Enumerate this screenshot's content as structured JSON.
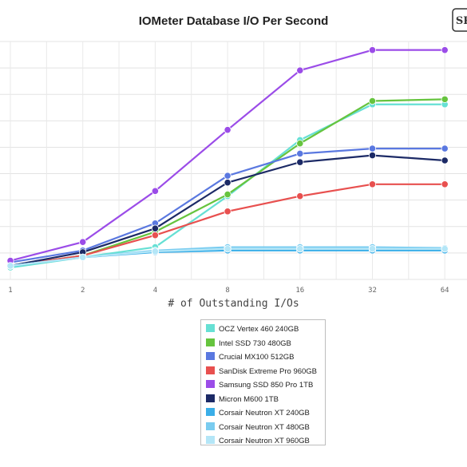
{
  "chart_data": {
    "type": "line",
    "title": "IOMeter Database I/O Per Second",
    "xlabel": "# of Outstanding I/Os",
    "ylabel": "",
    "categories": [
      "1",
      "2",
      "4",
      "8",
      "16",
      "32",
      "64"
    ],
    "yticks": 9,
    "grid": true,
    "legend_position": "bottom-center",
    "series": [
      {
        "name": "OCZ Vertex 460 240GB",
        "color": "#66e0d4",
        "values": [
          0.7,
          1.3,
          1.9,
          4.9,
          8.2,
          10.3,
          10.3
        ]
      },
      {
        "name": "Intel SSD 730 480GB",
        "color": "#66c43e",
        "values": [
          0.8,
          1.4,
          2.8,
          5.0,
          8.0,
          10.5,
          10.6
        ]
      },
      {
        "name": "Crucial MX100 512GB",
        "color": "#5a78e0",
        "values": [
          1.0,
          1.7,
          3.3,
          6.1,
          7.4,
          7.7,
          7.7
        ]
      },
      {
        "name": "SanDisk Extreme Pro 960GB",
        "color": "#e8504f",
        "values": [
          0.8,
          1.4,
          2.6,
          4.0,
          4.9,
          5.6,
          5.6
        ]
      },
      {
        "name": "Samsung SSD 850 Pro 1TB",
        "color": "#9b4ce8",
        "values": [
          1.1,
          2.2,
          5.2,
          8.8,
          12.3,
          13.5,
          13.5
        ]
      },
      {
        "name": "Micron M600 1TB",
        "color": "#1c2a66",
        "values": [
          0.8,
          1.6,
          3.0,
          5.7,
          6.9,
          7.3,
          7.0
        ]
      },
      {
        "name": "Corsair Neutron XT 240GB",
        "color": "#3aaee8",
        "values": [
          0.8,
          1.3,
          1.6,
          1.7,
          1.7,
          1.7,
          1.7
        ]
      },
      {
        "name": "Corsair Neutron XT 480GB",
        "color": "#79ccf0",
        "values": [
          0.8,
          1.3,
          1.7,
          1.9,
          1.9,
          1.9,
          1.85
        ]
      },
      {
        "name": "Corsair Neutron XT 960GB",
        "color": "#b4e6f7",
        "values": [
          0.8,
          1.3,
          1.65,
          1.8,
          1.8,
          1.8,
          1.8
        ]
      }
    ]
  },
  "logo_text": "SR"
}
